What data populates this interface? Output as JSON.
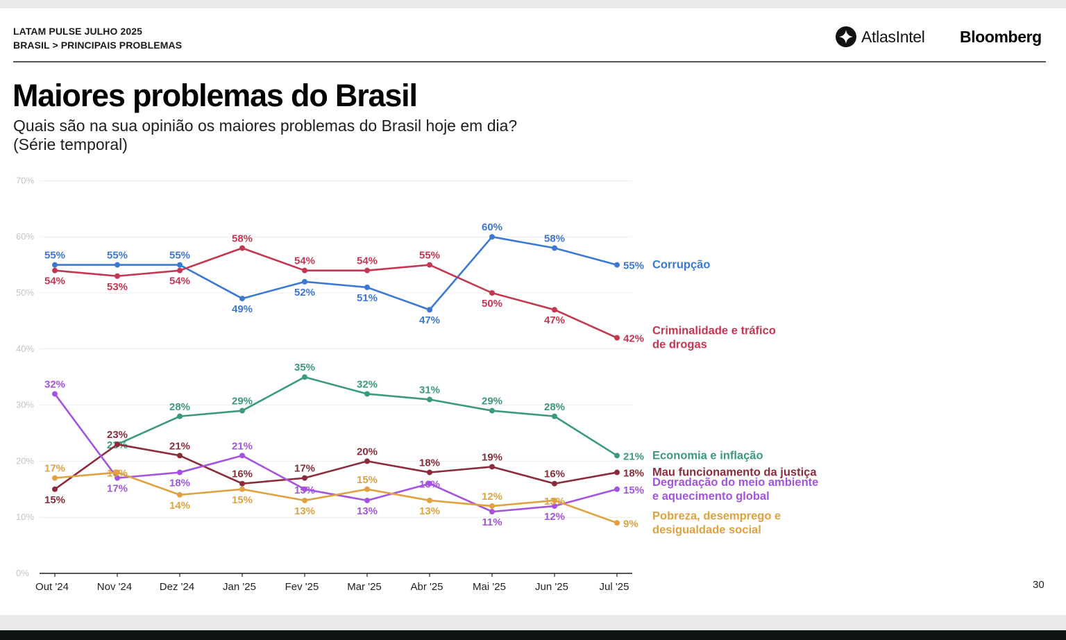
{
  "header": {
    "kicker_line1": "LATAM PULSE JULHO 2025",
    "kicker_line2": "BRASIL > PRINCIPAIS PROBLEMAS",
    "brand_atlas": "AtlasIntel",
    "brand_bloomberg": "Bloomberg"
  },
  "title": "Maiores problemas do Brasil",
  "subtitle_line1": "Quais são na sua opinião os maiores problemas do Brasil hoje em dia?",
  "subtitle_line2": "(Série temporal)",
  "page_number": "30",
  "chart_data": {
    "type": "line",
    "categories": [
      "Out '24",
      "Nov '24",
      "Dez '24",
      "Jan '25",
      "Fev '25",
      "Mar '25",
      "Abr '25",
      "Mai '25",
      "Jun '25",
      "Jul '25"
    ],
    "ylim": [
      0,
      70
    ],
    "yticks": [
      "0%",
      "10%",
      "20%",
      "30%",
      "40%",
      "50%",
      "60%",
      "70%"
    ],
    "grid": true,
    "legend": "right-end labels",
    "series": [
      {
        "name": "Corrupção",
        "color": "#3b78d4",
        "values": [
          55,
          55,
          55,
          49,
          52,
          51,
          47,
          60,
          58,
          55
        ],
        "label_pos": [
          "a",
          "a",
          "a",
          "b",
          "b",
          "b",
          "b",
          "a",
          "a",
          "r"
        ],
        "legend_lines": [
          "Corrupção"
        ]
      },
      {
        "name": "Criminalidade e tráfico de drogas",
        "color": "#c53650",
        "values": [
          54,
          53,
          54,
          58,
          54,
          54,
          55,
          50,
          47,
          42
        ],
        "label_pos": [
          "b",
          "b",
          "b",
          "a",
          "a",
          "a",
          "a",
          "b",
          "b",
          "r"
        ],
        "legend_lines": [
          "Criminalidade e tráfico",
          "de drogas"
        ]
      },
      {
        "name": "Economia e inflação",
        "color": "#3a9a7a",
        "values": [
          null,
          23,
          28,
          29,
          35,
          32,
          31,
          29,
          28,
          21
        ],
        "label_pos": [
          "",
          "n",
          "a",
          "a",
          "a",
          "a",
          "a",
          "a",
          "a",
          "r"
        ],
        "legend_lines": [
          "Economia e inflação"
        ]
      },
      {
        "name": "Mau funcionamento da justiça",
        "color": "#8c2b3a",
        "values": [
          15,
          23,
          21,
          16,
          17,
          20,
          18,
          19,
          16,
          18
        ],
        "label_pos": [
          "b",
          "a",
          "a",
          "a",
          "a",
          "a",
          "a",
          "a",
          "a",
          "r"
        ],
        "legend_lines": [
          "Mau funcionamento da justiça"
        ]
      },
      {
        "name": "Degradação do meio ambiente e aquecimento global",
        "color": "#a453e0",
        "values": [
          32,
          17,
          18,
          21,
          15,
          13,
          16,
          11,
          12,
          15
        ],
        "label_pos": [
          "a",
          "b",
          "b",
          "a",
          "n",
          "b",
          "n",
          "b",
          "b",
          "r"
        ],
        "legend_lines": [
          "Degradação do meio ambiente",
          "e aquecimento global"
        ]
      },
      {
        "name": "Pobreza, desemprego e desigualdade social",
        "color": "#e0a13f",
        "values": [
          17,
          18,
          14,
          15,
          13,
          15,
          13,
          12,
          13,
          9
        ],
        "label_pos": [
          "a",
          "n",
          "b",
          "b",
          "b",
          "a",
          "b",
          "a",
          "n",
          "r"
        ],
        "legend_lines": [
          "Pobreza, desemprego e",
          "desigualdade social"
        ]
      }
    ]
  }
}
